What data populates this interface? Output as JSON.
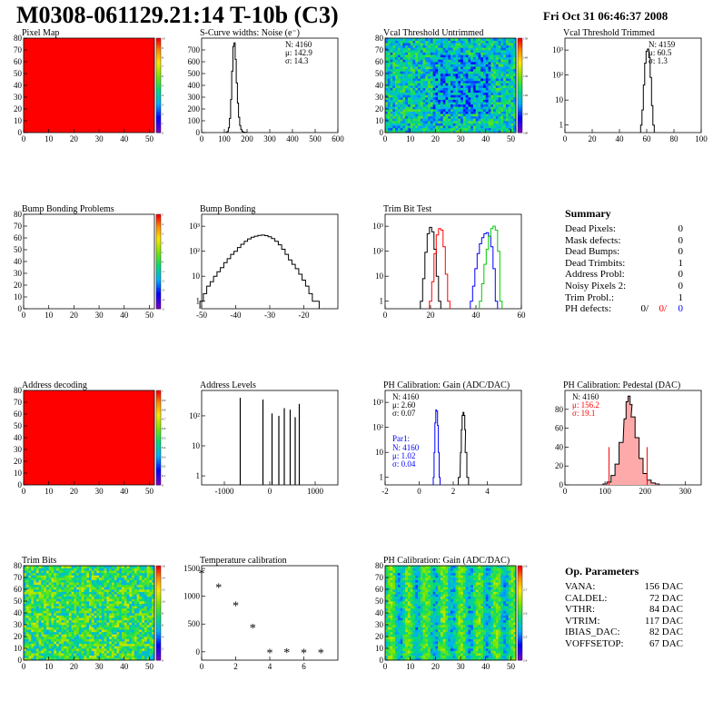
{
  "title": "M0308-061129.21:14 T-10b (C3)",
  "date": "Fri Oct 31 06:46:37 2008",
  "colors": {
    "red": "#ff0000",
    "blue": "#0000ff",
    "green": "#00cc00",
    "black": "#000000",
    "pink": "#ffaaaa"
  },
  "summary": {
    "title": "Summary",
    "rows": [
      {
        "label": "Dead Pixels:",
        "value": "0"
      },
      {
        "label": "Mask defects:",
        "value": "0"
      },
      {
        "label": "Dead Bumps:",
        "value": "0"
      },
      {
        "label": "Dead Trimbits:",
        "value": "1"
      },
      {
        "label": "Address Probl:",
        "value": "0"
      },
      {
        "label": "Noisy Pixels 2:",
        "value": "0"
      },
      {
        "label": "Trim Probl.:",
        "value": "1"
      }
    ],
    "ph_label": "PH defects:",
    "ph_values": [
      "0/",
      "0/",
      "0"
    ]
  },
  "op": {
    "title": "Op. Parameters",
    "rows": [
      {
        "label": "VANA:",
        "value": "156 DAC"
      },
      {
        "label": "CALDEL:",
        "value": "72 DAC"
      },
      {
        "label": "VTHR:",
        "value": "84 DAC"
      },
      {
        "label": "VTRIM:",
        "value": "117 DAC"
      },
      {
        "label": "IBIAS_DAC:",
        "value": "82 DAC"
      },
      {
        "label": "VOFFSETOP:",
        "value": "67 DAC"
      }
    ]
  },
  "chart_data": [
    {
      "id": "pixel-map",
      "type": "heatmap",
      "title": "Pixel Map",
      "xticks": [
        "0",
        "10",
        "20",
        "30",
        "40",
        "50"
      ],
      "yticks": [
        "0",
        "10",
        "20",
        "30",
        "40",
        "50",
        "60",
        "70",
        "80"
      ],
      "xlim": [
        0,
        52
      ],
      "ylim": [
        0,
        80
      ],
      "fill": "uniform-red",
      "palette": "rainbow",
      "zticks": [
        "0",
        "1",
        "2",
        "3",
        "4",
        "5",
        "6",
        "7",
        "8",
        "9",
        "10"
      ]
    },
    {
      "id": "noise",
      "type": "line",
      "title": "S-Curve widths: Noise (e⁻)",
      "xticks": [
        "0",
        "100",
        "200",
        "300",
        "400",
        "500",
        "600"
      ],
      "yticks": [
        "0",
        "100",
        "200",
        "300",
        "400",
        "500",
        "600",
        "700"
      ],
      "xlim": [
        0,
        600
      ],
      "ylim": [
        0,
        800
      ],
      "stats": [
        "N: 4160",
        "μ: 142.9",
        "σ: 14.3"
      ],
      "series": [
        {
          "color": "#000000",
          "x": [
            110,
            115,
            120,
            125,
            130,
            135,
            140,
            145,
            150,
            155,
            160,
            165,
            170,
            175,
            180,
            185,
            190,
            195
          ],
          "y": [
            2,
            10,
            40,
            120,
            280,
            520,
            730,
            760,
            620,
            420,
            250,
            130,
            60,
            25,
            10,
            4,
            2,
            1
          ]
        }
      ]
    },
    {
      "id": "vcal-untrimmed",
      "type": "heatmap",
      "title": "Vcal Threshold Untrimmed",
      "xticks": [
        "0",
        "10",
        "20",
        "30",
        "40",
        "50"
      ],
      "yticks": [
        "0",
        "10",
        "20",
        "30",
        "40",
        "50",
        "60",
        "70",
        "80"
      ],
      "xlim": [
        0,
        52
      ],
      "ylim": [
        0,
        80
      ],
      "fill": "noise-blue",
      "palette": "rainbow",
      "zticks": [
        "100",
        "110",
        "120",
        "130",
        "140",
        "150"
      ]
    },
    {
      "id": "vcal-trimmed",
      "type": "line",
      "title": "Vcal Threshold Trimmed",
      "log": true,
      "xticks": [
        "0",
        "20",
        "40",
        "60",
        "80",
        "100"
      ],
      "yticks": [
        "1",
        "10",
        "10²",
        "10³"
      ],
      "xlim": [
        0,
        100
      ],
      "ylim": [
        0.5,
        3000
      ],
      "stats": [
        "N: 4159",
        "μ: 60.5",
        "σ:  1.3"
      ],
      "series": [
        {
          "color": "#000000",
          "x": [
            56,
            57,
            58,
            59,
            60,
            61,
            62,
            63,
            64,
            65
          ],
          "y": [
            1,
            4,
            40,
            300,
            900,
            1100,
            500,
            80,
            6,
            1
          ]
        }
      ]
    },
    {
      "id": "bump-problems",
      "type": "heatmap",
      "title": "Bump Bonding Problems",
      "xticks": [
        "0",
        "10",
        "20",
        "30",
        "40",
        "50"
      ],
      "yticks": [
        "0",
        "10",
        "20",
        "30",
        "40",
        "50",
        "60",
        "70",
        "80"
      ],
      "xlim": [
        0,
        52
      ],
      "ylim": [
        0,
        80
      ],
      "fill": "empty",
      "palette": "rainbow",
      "zticks": [
        "-5",
        "-4",
        "-3",
        "-2",
        "-1",
        "0",
        "1",
        "2",
        "3",
        "4",
        "5"
      ]
    },
    {
      "id": "bump-bonding",
      "type": "line",
      "title": "Bump Bonding",
      "log": true,
      "xticks": [
        "-50",
        "-40",
        "-30",
        "-20"
      ],
      "yticks": [
        "1",
        "10",
        "10²",
        "10³"
      ],
      "xlim": [
        -50,
        -10
      ],
      "ylim": [
        0.5,
        3000
      ],
      "series": [
        {
          "color": "#000000",
          "x": [
            -50,
            -49,
            -48,
            -47,
            -46,
            -45,
            -44,
            -43,
            -42,
            -41,
            -40,
            -39,
            -38,
            -37,
            -36,
            -35,
            -34,
            -33,
            -32,
            -31,
            -30,
            -29,
            -28,
            -27,
            -26,
            -25,
            -24,
            -23,
            -22,
            -21,
            -20,
            -19,
            -18,
            -17,
            -16
          ],
          "y": [
            1,
            2,
            4,
            6,
            10,
            15,
            22,
            35,
            50,
            75,
            100,
            140,
            190,
            250,
            310,
            360,
            400,
            430,
            440,
            420,
            380,
            320,
            250,
            180,
            120,
            75,
            45,
            30,
            20,
            12,
            7,
            4,
            2,
            1,
            1
          ]
        }
      ]
    },
    {
      "id": "trim-bit-test",
      "type": "line",
      "title": "Trim Bit Test",
      "log": true,
      "xticks": [
        "0",
        "20",
        "40",
        "60"
      ],
      "yticks": [
        "1",
        "10",
        "10²",
        "10³"
      ],
      "xlim": [
        0,
        60
      ],
      "ylim": [
        0.5,
        3000
      ],
      "series": [
        {
          "color": "#000000",
          "x": [
            16,
            17,
            18,
            19,
            20,
            21,
            22,
            23,
            24
          ],
          "y": [
            1,
            8,
            90,
            500,
            900,
            600,
            120,
            10,
            1
          ]
        },
        {
          "color": "#ff0000",
          "x": [
            20,
            21,
            22,
            23,
            24,
            25,
            26,
            27,
            28
          ],
          "y": [
            1,
            6,
            80,
            450,
            800,
            700,
            150,
            12,
            1
          ]
        },
        {
          "color": "#0000ff",
          "x": [
            38,
            39,
            40,
            41,
            42,
            43,
            44,
            45,
            46,
            47,
            48,
            49
          ],
          "y": [
            1,
            4,
            20,
            80,
            200,
            350,
            500,
            550,
            400,
            150,
            20,
            1
          ]
        },
        {
          "color": "#00cc00",
          "x": [
            42,
            43,
            44,
            45,
            46,
            47,
            48,
            49,
            50,
            51
          ],
          "y": [
            1,
            5,
            30,
            120,
            400,
            800,
            1000,
            700,
            100,
            1
          ]
        }
      ]
    },
    {
      "id": "address-decoding",
      "type": "heatmap",
      "title": "Address decoding",
      "xticks": [
        "0",
        "10",
        "20",
        "30",
        "40",
        "50"
      ],
      "yticks": [
        "0",
        "10",
        "20",
        "30",
        "40",
        "50",
        "60",
        "70",
        "80"
      ],
      "xlim": [
        0,
        52
      ],
      "ylim": [
        0,
        80
      ],
      "fill": "uniform-red",
      "palette": "rainbow",
      "zticks": [
        "0",
        "0.1",
        "0.2",
        "0.3",
        "0.4",
        "0.5",
        "0.6",
        "0.7",
        "0.8",
        "0.9",
        "1"
      ]
    },
    {
      "id": "address-levels",
      "type": "bar",
      "title": "Address Levels",
      "log": true,
      "xticks": [
        "-1000",
        "0",
        "1000"
      ],
      "yticks": [
        "1",
        "10",
        "10²"
      ],
      "xlim": [
        -1500,
        1500
      ],
      "ylim": [
        0.5,
        700
      ],
      "x": [
        -650,
        -150,
        50,
        200,
        320,
        450,
        560,
        650
      ],
      "values": [
        400,
        350,
        120,
        100,
        180,
        160,
        90,
        250
      ]
    },
    {
      "id": "gain",
      "type": "line",
      "title": "PH Calibration: Gain (ADC/DAC)",
      "log": true,
      "xticks": [
        "-2",
        "0",
        "2",
        "4"
      ],
      "yticks": [
        "1",
        "10",
        "10²",
        "10³"
      ],
      "xlim": [
        -2,
        6
      ],
      "ylim": [
        0.5,
        3000
      ],
      "stats": [
        "N: 4160",
        "μ: 2.60",
        "σ: 0.07"
      ],
      "par_title": "Par1:",
      "par_stats": [
        "N: 4160",
        "μ: 1.02",
        "σ: 0.04"
      ],
      "series": [
        {
          "color": "#000000",
          "x": [
            2.35,
            2.45,
            2.5,
            2.55,
            2.6,
            2.65,
            2.7,
            2.75,
            2.85
          ],
          "y": [
            1,
            10,
            80,
            300,
            400,
            300,
            80,
            10,
            1
          ]
        },
        {
          "color": "#0000ff",
          "x": [
            0.85,
            0.9,
            0.95,
            1.0,
            1.05,
            1.1,
            1.15,
            1.2
          ],
          "y": [
            1,
            10,
            150,
            500,
            450,
            120,
            10,
            1
          ]
        }
      ]
    },
    {
      "id": "pedestal",
      "type": "line",
      "title": "PH Calibration: Pedestal (DAC)",
      "xticks": [
        "0",
        "100",
        "200",
        "300"
      ],
      "yticks": [
        "0",
        "20",
        "40",
        "60",
        "80"
      ],
      "xlim": [
        0,
        340
      ],
      "ylim": [
        0,
        100
      ],
      "stats": [
        "N: 4160",
        "μ: 156.2",
        "σ: 19.1"
      ],
      "series": [
        {
          "color": "#000000",
          "x": [
            100,
            110,
            120,
            130,
            140,
            150,
            155,
            160,
            165,
            170,
            180,
            190,
            200,
            210,
            220,
            230
          ],
          "y": [
            1,
            3,
            10,
            22,
            45,
            70,
            88,
            94,
            85,
            72,
            50,
            28,
            12,
            5,
            2,
            1
          ]
        }
      ]
    },
    {
      "id": "trim-bits",
      "type": "heatmap",
      "title": "Trim Bits",
      "xticks": [
        "0",
        "10",
        "20",
        "30",
        "40",
        "50"
      ],
      "yticks": [
        "0",
        "10",
        "20",
        "30",
        "40",
        "50",
        "60",
        "70",
        "80"
      ],
      "xlim": [
        0,
        52
      ],
      "ylim": [
        0,
        80
      ],
      "fill": "noise-green",
      "palette": "rainbow",
      "zticks": [
        "0",
        "2",
        "4",
        "6",
        "8",
        "10",
        "12",
        "14",
        "16"
      ]
    },
    {
      "id": "temperature",
      "type": "scatter",
      "title": "Temperature calibration",
      "xticks": [
        "0",
        "2",
        "4",
        "6"
      ],
      "yticks": [
        "0",
        "500",
        "1000",
        "1500"
      ],
      "xlim": [
        0,
        8
      ],
      "ylim": [
        -150,
        1550
      ],
      "x": [
        0,
        1,
        2,
        3,
        4,
        5,
        6,
        7
      ],
      "values": [
        1400,
        1150,
        820,
        420,
        -30,
        -20,
        -30,
        -30
      ]
    },
    {
      "id": "gain-map",
      "type": "heatmap",
      "title": "PH Calibration: Gain (ADC/DAC)",
      "xticks": [
        "0",
        "10",
        "20",
        "30",
        "40",
        "50"
      ],
      "yticks": [
        "0",
        "10",
        "20",
        "30",
        "40",
        "50",
        "60",
        "70",
        "80"
      ],
      "xlim": [
        0,
        52
      ],
      "ylim": [
        0,
        80
      ],
      "fill": "column-stripes",
      "palette": "rainbow",
      "zticks": [
        "2.4",
        "2.5",
        "2.6",
        "2.7",
        "2.8"
      ]
    }
  ]
}
